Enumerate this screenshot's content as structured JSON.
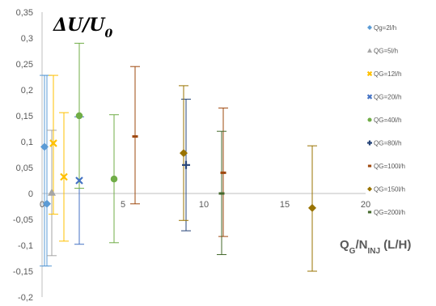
{
  "chart_data": {
    "type": "scatter",
    "title": "ΔU/U0",
    "title_parts": {
      "main": "ΔU/U",
      "sub": "0"
    },
    "xlabel": "QG/NINJ (L/H)",
    "xlabel_parts": {
      "q": "Q",
      "q_sub": "G",
      "slash_n": "/N",
      "n_sub": "INJ",
      "units": " (L/H)"
    },
    "ylabel": "",
    "xlim": [
      0,
      20
    ],
    "ylim": [
      -0.2,
      0.35
    ],
    "x_ticks": [
      {
        "value": 0,
        "label": "0"
      },
      {
        "value": 5,
        "label": "5"
      },
      {
        "value": 10,
        "label": "10"
      },
      {
        "value": 15,
        "label": "15"
      },
      {
        "value": 20,
        "label": "20"
      }
    ],
    "y_ticks": [
      {
        "value": 0.35,
        "label": "0,35"
      },
      {
        "value": 0.3,
        "label": "0,3"
      },
      {
        "value": 0.25,
        "label": "0,25"
      },
      {
        "value": 0.2,
        "label": "0,2"
      },
      {
        "value": 0.15,
        "label": "0,15"
      },
      {
        "value": 0.1,
        "label": "0,1"
      },
      {
        "value": 0.05,
        "label": "0,05"
      },
      {
        "value": 0,
        "label": "0"
      },
      {
        "value": -0.05,
        "label": "-0,05"
      },
      {
        "value": -0.1,
        "label": "-0,1"
      },
      {
        "value": -0.15,
        "label": "-0,15"
      },
      {
        "value": -0.2,
        "label": "-0,2"
      }
    ],
    "grid": false,
    "legend_position": "right",
    "series": [
      {
        "name": "Qg=2l/h",
        "color": "#5B9BD5",
        "marker": "diamond",
        "points": [
          {
            "x": 0.15,
            "y": 0.09,
            "ylo": -0.14,
            "yhi": 0.228
          },
          {
            "x": 0.3,
            "y": -0.02,
            "ylo": -0.14,
            "yhi": 0.228
          }
        ]
      },
      {
        "name": "QG=5l/h",
        "color": "#A5A5A5",
        "marker": "triangle",
        "points": [
          {
            "x": 0.6,
            "y": 0.002,
            "ylo": -0.12,
            "yhi": 0.122
          }
        ]
      },
      {
        "name": "QG=12l/h",
        "color": "#FFC000",
        "marker": "x",
        "points": [
          {
            "x": 0.7,
            "y": 0.097,
            "ylo": -0.04,
            "yhi": 0.228
          },
          {
            "x": 1.35,
            "y": 0.032,
            "ylo": -0.092,
            "yhi": 0.156
          }
        ]
      },
      {
        "name": "QG=20l/h",
        "color": "#4472C4",
        "marker": "x",
        "points": [
          {
            "x": 2.3,
            "y": 0.025,
            "ylo": -0.098,
            "yhi": 0.148
          }
        ]
      },
      {
        "name": "QG=40l/h",
        "color": "#70AD47",
        "marker": "circle",
        "points": [
          {
            "x": 2.3,
            "y": 0.15,
            "ylo": 0.01,
            "yhi": 0.29
          },
          {
            "x": 4.45,
            "y": 0.028,
            "ylo": -0.095,
            "yhi": 0.152
          }
        ]
      },
      {
        "name": "QG=80l/h",
        "color": "#264478",
        "marker": "plus",
        "points": [
          {
            "x": 8.9,
            "y": 0.055,
            "ylo": -0.072,
            "yhi": 0.182
          }
        ]
      },
      {
        "name": "QG=100l/h",
        "color": "#9E480E",
        "marker": "dash",
        "points": [
          {
            "x": 5.75,
            "y": 0.11,
            "ylo": -0.02,
            "yhi": 0.245
          },
          {
            "x": 11.2,
            "y": 0.04,
            "ylo": -0.083,
            "yhi": 0.165
          }
        ]
      },
      {
        "name": "QG=150l/h",
        "color": "#997300",
        "marker": "diamond",
        "points": [
          {
            "x": 8.75,
            "y": 0.078,
            "ylo": -0.052,
            "yhi": 0.208
          },
          {
            "x": 16.7,
            "y": -0.028,
            "ylo": -0.15,
            "yhi": 0.092
          }
        ]
      },
      {
        "name": "QG=200l/h",
        "color": "#43682B",
        "marker": "dash",
        "points": [
          {
            "x": 11.1,
            "y": 0.0,
            "ylo": -0.118,
            "yhi": 0.12
          }
        ]
      }
    ]
  }
}
